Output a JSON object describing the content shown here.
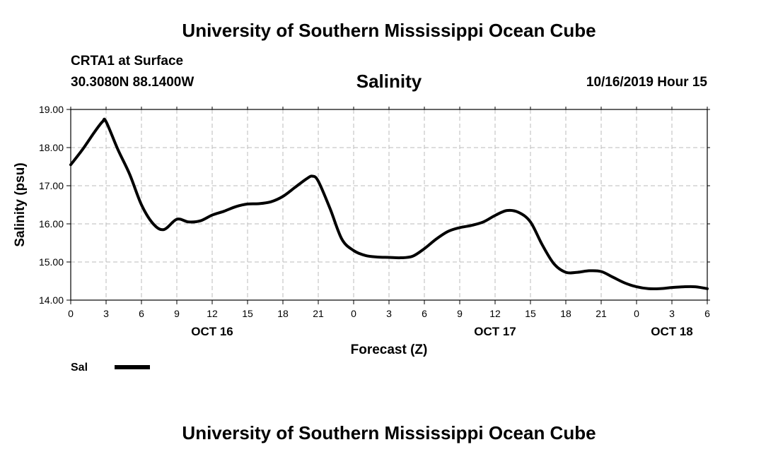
{
  "header": {
    "title": "University of Southern Mississippi Ocean Cube",
    "station": "CRTA1 at Surface",
    "coords": "30.3080N 88.1400W",
    "variable": "Salinity",
    "datetime": "10/16/2019 Hour 15"
  },
  "footer": {
    "title": "University of Southern Mississippi Ocean Cube"
  },
  "chart_data": {
    "type": "line",
    "title": "Salinity",
    "xlabel": "Forecast (Z)",
    "ylabel": "Salinity (psu)",
    "xlim": [
      0,
      54
    ],
    "ylim": [
      14.0,
      19.0
    ],
    "grid": true,
    "x_ticks": [
      0,
      3,
      6,
      9,
      12,
      15,
      18,
      21,
      24,
      27,
      30,
      33,
      36,
      39,
      42,
      45,
      48,
      51,
      54
    ],
    "x_tick_labels": [
      "0",
      "3",
      "6",
      "9",
      "12",
      "15",
      "18",
      "21",
      "0",
      "3",
      "6",
      "9",
      "12",
      "15",
      "18",
      "21",
      "0",
      "3",
      "6"
    ],
    "y_ticks": [
      14.0,
      15.0,
      16.0,
      17.0,
      18.0,
      19.0
    ],
    "y_tick_labels": [
      "14.00",
      "15.00",
      "16.00",
      "17.00",
      "18.00",
      "19.00"
    ],
    "date_labels": [
      {
        "x": 12,
        "label": "OCT 16"
      },
      {
        "x": 36,
        "label": "OCT 17"
      },
      {
        "x": 51,
        "label": "OCT 18"
      }
    ],
    "legend": {
      "position": "bottom-left",
      "entries": [
        "Sal"
      ]
    },
    "series": [
      {
        "name": "Sal",
        "color": "#000000",
        "x": [
          0,
          1,
          2,
          2.7,
          3,
          4,
          5,
          6,
          7,
          7.9,
          9,
          10,
          11,
          12,
          13,
          14,
          15,
          16,
          17,
          18,
          19,
          20,
          20.5,
          21,
          22,
          23,
          24,
          25,
          26,
          27,
          28,
          29,
          30,
          31,
          32,
          33,
          34,
          35,
          36,
          37,
          38,
          39,
          40,
          41,
          42,
          43,
          44,
          45,
          46,
          47,
          48,
          49,
          50,
          51,
          52,
          53,
          54
        ],
        "values": [
          17.55,
          17.95,
          18.4,
          18.68,
          18.68,
          17.95,
          17.3,
          16.5,
          16.0,
          15.85,
          16.12,
          16.05,
          16.08,
          16.23,
          16.33,
          16.45,
          16.52,
          16.53,
          16.58,
          16.72,
          16.95,
          17.18,
          17.25,
          17.12,
          16.4,
          15.6,
          15.3,
          15.17,
          15.13,
          15.12,
          15.11,
          15.15,
          15.35,
          15.6,
          15.8,
          15.9,
          15.96,
          16.05,
          16.22,
          16.35,
          16.3,
          16.05,
          15.45,
          14.95,
          14.73,
          14.73,
          14.77,
          14.75,
          14.6,
          14.45,
          14.35,
          14.3,
          14.3,
          14.33,
          14.35,
          14.35,
          14.3
        ]
      }
    ]
  }
}
